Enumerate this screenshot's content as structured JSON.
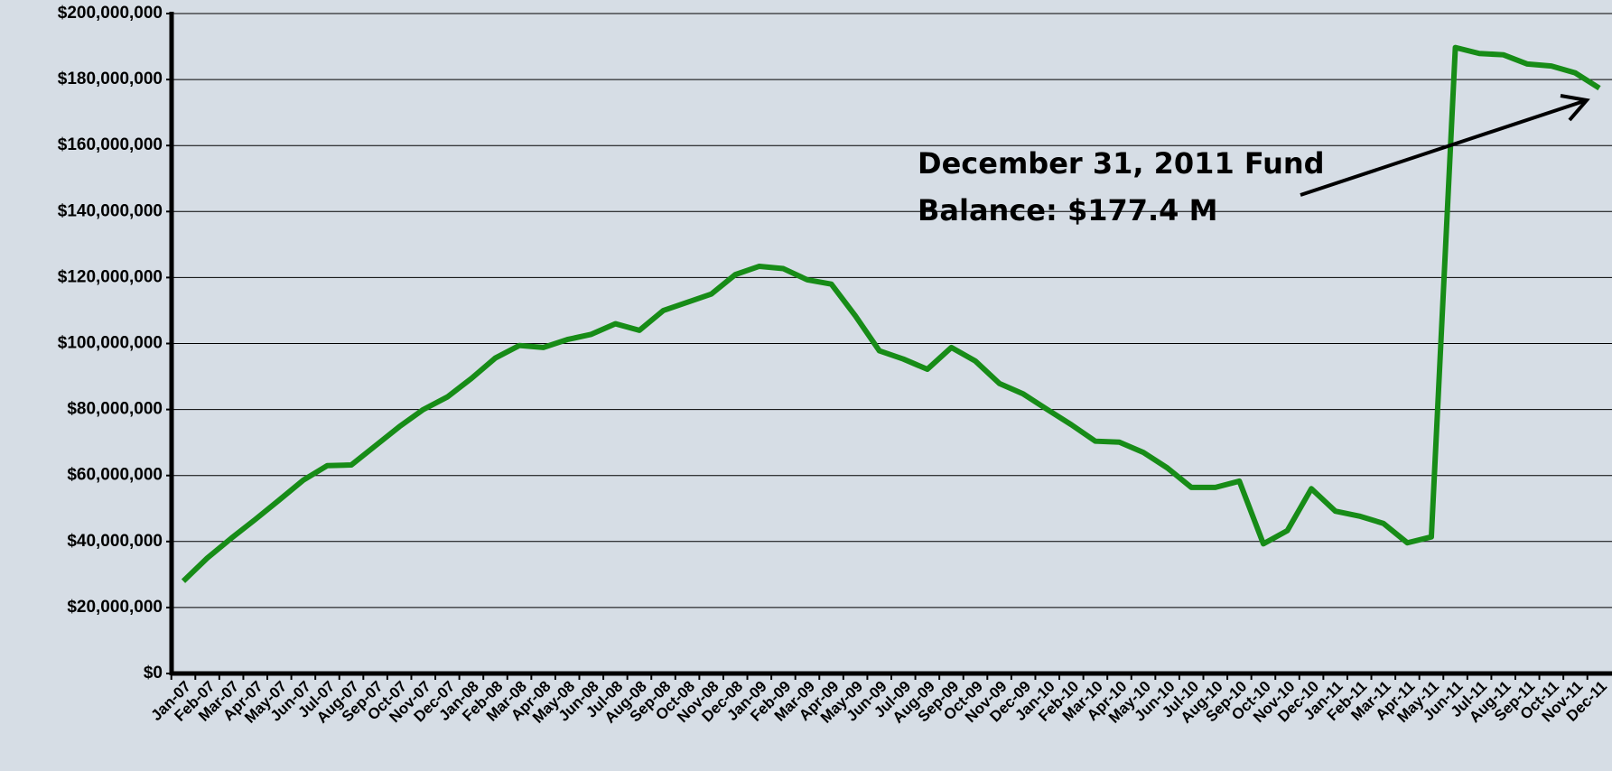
{
  "chart_data": {
    "type": "line",
    "categories": [
      "Jan-07",
      "Feb-07",
      "Mar-07",
      "Apr-07",
      "May-07",
      "Jun-07",
      "Jul-07",
      "Aug-07",
      "Sep-07",
      "Oct-07",
      "Nov-07",
      "Dec-07",
      "Jan-08",
      "Feb-08",
      "Mar-08",
      "Apr-08",
      "May-08",
      "Jun-08",
      "Jul-08",
      "Aug-08",
      "Sep-08",
      "Oct-08",
      "Nov-08",
      "Dec-08",
      "Jan-09",
      "Feb-09",
      "Mar-09",
      "Apr-09",
      "May-09",
      "Jun-09",
      "Jul-09",
      "Aug-09",
      "Sep-09",
      "Oct-09",
      "Nov-09",
      "Dec-09",
      "Jan-10",
      "Feb-10",
      "Mar-10",
      "Apr-10",
      "May-10",
      "Jun-10",
      "Jul-10",
      "Aug-10",
      "Sep-10",
      "Oct-10",
      "Nov-10",
      "Dec-10",
      "Jan-11",
      "Feb-11",
      "Mar-11",
      "Apr-11",
      "May-11",
      "Jun-11",
      "Jul-11",
      "Aug-11",
      "Sep-11",
      "Oct-11",
      "Nov-11",
      "Dec-11"
    ],
    "series": [
      {
        "color": "#178c17",
        "values": [
          28000000,
          35000000,
          41000000,
          46700000,
          52600000,
          58600000,
          63000000,
          63200000,
          69000000,
          74800000,
          80000000,
          83800000,
          89400000,
          95600000,
          99400000,
          98800000,
          101200000,
          102800000,
          106000000,
          104000000,
          110000000,
          112500000,
          115000000,
          120900000,
          123400000,
          122700000,
          119300000,
          118000000,
          108400000,
          97800000,
          95300000,
          92200000,
          98800000,
          94700000,
          87900000,
          84700000,
          80000000,
          75400000,
          70400000,
          70100000,
          67000000,
          62300000,
          56400000,
          56400000,
          58300000,
          39300000,
          43300000,
          56000000,
          49200000,
          47700000,
          45500000,
          39600000,
          41400000,
          189700000,
          187900000,
          187500000,
          184700000,
          184100000,
          182000000,
          177400000
        ]
      }
    ],
    "ylim": [
      0,
      200000000
    ],
    "yticks": [
      {
        "value": 0,
        "label": "$0"
      },
      {
        "value": 20000000,
        "label": "$20,000,000"
      },
      {
        "value": 40000000,
        "label": "$40,000,000"
      },
      {
        "value": 60000000,
        "label": "$60,000,000"
      },
      {
        "value": 80000000,
        "label": "$80,000,000"
      },
      {
        "value": 100000000,
        "label": "$100,000,000"
      },
      {
        "value": 120000000,
        "label": "$120,000,000"
      },
      {
        "value": 140000000,
        "label": "$140,000,000"
      },
      {
        "value": 160000000,
        "label": "$160,000,000"
      },
      {
        "value": 180000000,
        "label": "$180,000,000"
      },
      {
        "value": 200000000,
        "label": "$200,000,000"
      }
    ],
    "grid": true,
    "annotation": [
      "December 31, 2011 Fund",
      "Balance: $177.4 M"
    ]
  }
}
